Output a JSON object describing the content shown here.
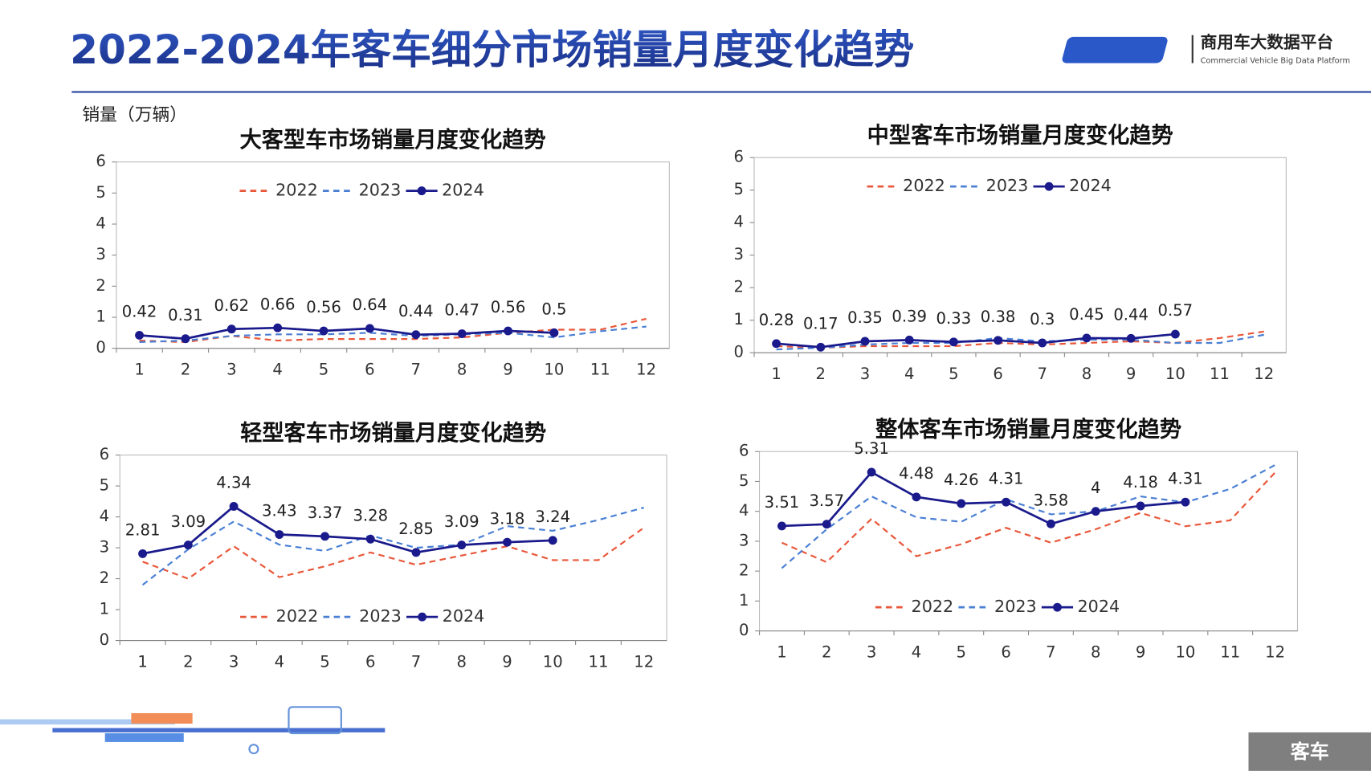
{
  "header": {
    "title": "2022-2024年客车细分市场销量月度变化趋势",
    "logo_name": "商用车大数据平台",
    "logo_subtitle": "Commercial Vehicle Big Data Platform",
    "unit": "销量（万辆）",
    "footer": "客车"
  },
  "chart_data": [
    {
      "type": "line",
      "title": "大客型车市场销量月度变化趋势",
      "legend": "top",
      "categories": [
        "1",
        "2",
        "3",
        "4",
        "5",
        "6",
        "7",
        "8",
        "9",
        "10",
        "11",
        "12"
      ],
      "ylim": [
        0,
        6
      ],
      "yticks": [
        0,
        1,
        2,
        3,
        4,
        5,
        6
      ],
      "series": [
        {
          "name": "2022",
          "color": "#e8573a",
          "dashed": true,
          "values": [
            0.25,
            0.2,
            0.4,
            0.25,
            0.3,
            0.3,
            0.3,
            0.35,
            0.5,
            0.6,
            0.6,
            0.95
          ]
        },
        {
          "name": "2023",
          "color": "#4a7fd4",
          "dashed": true,
          "values": [
            0.2,
            0.25,
            0.4,
            0.45,
            0.45,
            0.5,
            0.4,
            0.45,
            0.5,
            0.35,
            0.55,
            0.7
          ]
        },
        {
          "name": "2024",
          "color": "#1a1a8c",
          "dashed": false,
          "labels": true,
          "values": [
            0.42,
            0.31,
            0.62,
            0.66,
            0.56,
            0.64,
            0.44,
            0.47,
            0.56,
            0.5,
            null,
            null
          ]
        }
      ]
    },
    {
      "type": "line",
      "title": "中型客车市场销量月度变化趋势",
      "legend": "top",
      "categories": [
        "1",
        "2",
        "3",
        "4",
        "5",
        "6",
        "7",
        "8",
        "9",
        "10",
        "11",
        "12"
      ],
      "ylim": [
        0,
        6
      ],
      "yticks": [
        0,
        1,
        2,
        3,
        4,
        5,
        6
      ],
      "series": [
        {
          "name": "2022",
          "color": "#e8573a",
          "dashed": true,
          "values": [
            0.2,
            0.15,
            0.2,
            0.2,
            0.2,
            0.3,
            0.25,
            0.3,
            0.35,
            0.3,
            0.45,
            0.65
          ]
        },
        {
          "name": "2023",
          "color": "#4a7fd4",
          "dashed": true,
          "values": [
            0.1,
            0.15,
            0.25,
            0.3,
            0.3,
            0.45,
            0.35,
            0.4,
            0.4,
            0.3,
            0.3,
            0.55
          ]
        },
        {
          "name": "2024",
          "color": "#1a1a8c",
          "dashed": false,
          "labels": true,
          "values": [
            0.28,
            0.17,
            0.35,
            0.39,
            0.33,
            0.38,
            0.3,
            0.45,
            0.44,
            0.57,
            null,
            null
          ]
        }
      ]
    },
    {
      "type": "line",
      "title": "轻型客车市场销量月度变化趋势",
      "legend": "bottom",
      "categories": [
        "1",
        "2",
        "3",
        "4",
        "5",
        "6",
        "7",
        "8",
        "9",
        "10",
        "11",
        "12"
      ],
      "ylim": [
        0,
        6
      ],
      "yticks": [
        0,
        1,
        2,
        3,
        4,
        5,
        6
      ],
      "series": [
        {
          "name": "2022",
          "color": "#e8573a",
          "dashed": true,
          "values": [
            2.55,
            2.0,
            3.05,
            2.05,
            2.4,
            2.85,
            2.45,
            2.75,
            3.05,
            2.6,
            2.6,
            3.65
          ]
        },
        {
          "name": "2023",
          "color": "#4a7fd4",
          "dashed": true,
          "values": [
            1.8,
            2.95,
            3.85,
            3.1,
            2.9,
            3.4,
            3.0,
            3.1,
            3.7,
            3.55,
            3.9,
            4.3
          ]
        },
        {
          "name": "2024",
          "color": "#1a1a8c",
          "dashed": false,
          "labels": true,
          "values": [
            2.81,
            3.09,
            4.34,
            3.43,
            3.37,
            3.28,
            2.85,
            3.09,
            3.18,
            3.24,
            null,
            null
          ]
        }
      ]
    },
    {
      "type": "line",
      "title": "整体客车市场销量月度变化趋势",
      "legend": "bottom",
      "categories": [
        "1",
        "2",
        "3",
        "4",
        "5",
        "6",
        "7",
        "8",
        "9",
        "10",
        "11",
        "12"
      ],
      "ylim": [
        0,
        6
      ],
      "yticks": [
        0,
        1,
        2,
        3,
        4,
        5,
        6
      ],
      "series": [
        {
          "name": "2022",
          "color": "#e8573a",
          "dashed": true,
          "values": [
            2.95,
            2.3,
            3.75,
            2.5,
            2.9,
            3.45,
            2.95,
            3.4,
            3.95,
            3.5,
            3.7,
            5.3
          ]
        },
        {
          "name": "2023",
          "color": "#4a7fd4",
          "dashed": true,
          "values": [
            2.1,
            3.4,
            4.5,
            3.8,
            3.65,
            4.4,
            3.9,
            4.0,
            4.5,
            4.3,
            4.75,
            5.55
          ]
        },
        {
          "name": "2024",
          "color": "#1a1a8c",
          "dashed": false,
          "labels": true,
          "values": [
            3.51,
            3.57,
            5.31,
            4.48,
            4.26,
            4.31,
            3.58,
            4,
            4.18,
            4.31,
            null,
            null
          ]
        }
      ]
    }
  ]
}
